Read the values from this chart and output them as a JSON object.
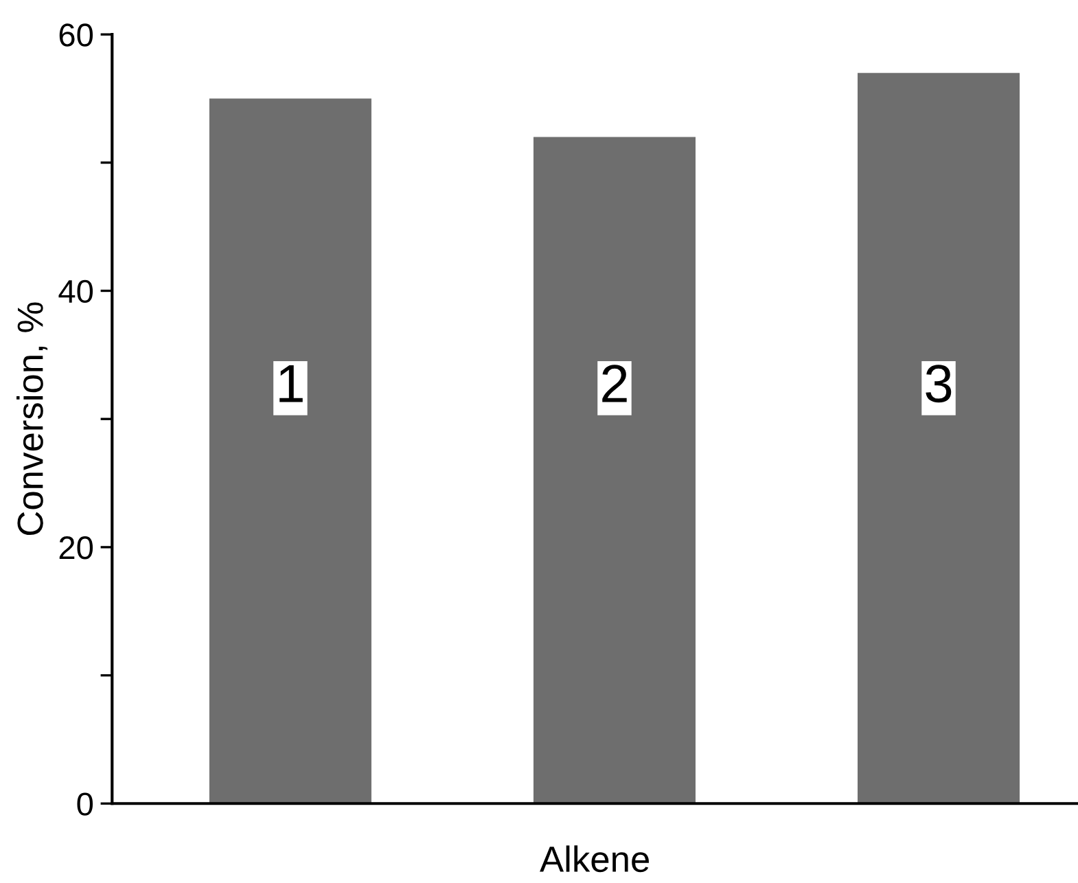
{
  "chart_data": {
    "type": "bar",
    "xlabel": "Alkene",
    "ylabel": "Conversion, %",
    "categories": [
      "1",
      "2",
      "3"
    ],
    "values": [
      55,
      52,
      57
    ],
    "color": "#6e6e6e",
    "ylim": [
      0,
      60
    ],
    "yticks": [
      0,
      {
        "value": 10,
        "label": null
      },
      20,
      {
        "value": 30,
        "label": null
      },
      40,
      {
        "value": 50,
        "label": null
      },
      60
    ],
    "grid": false,
    "legend": false
  }
}
